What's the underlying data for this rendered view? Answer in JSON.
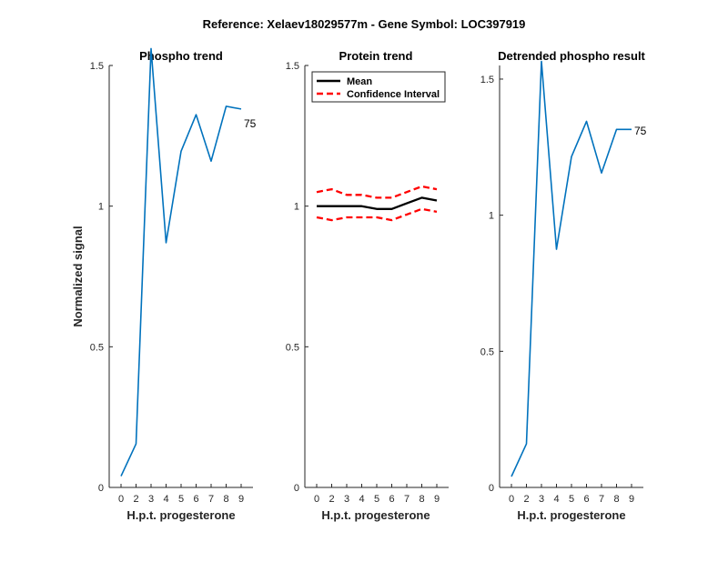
{
  "suptitle": "Reference:  Xelaev18029577m - Gene Symbol:  LOC397919",
  "colors": {
    "series_blue": "#0072BD",
    "mean_black": "#000000",
    "ci_red": "#FF0000",
    "axis": "#262626"
  },
  "chart_data": [
    {
      "id": "phospho",
      "type": "line",
      "title": "Phospho trend",
      "xlabel": "H.p.t. progesterone",
      "ylabel": "Normalized signal",
      "x": [
        0,
        2,
        3,
        4,
        5,
        6,
        7,
        8,
        9
      ],
      "xticks": [
        "0",
        "2",
        "3",
        "4",
        "5",
        "6",
        "7",
        "8",
        "9"
      ],
      "ylim": [
        0,
        1.5
      ],
      "yticks": [
        0,
        0.5,
        1,
        1.5
      ],
      "ytick_labels": [
        "0",
        "0.5",
        "1",
        "1.5"
      ],
      "series": [
        {
          "values": [
            0.04,
            0.155,
            1.56,
            0.87,
            1.195,
            1.325,
            1.16,
            1.355,
            1.345
          ]
        }
      ],
      "end_label": "75"
    },
    {
      "id": "protein",
      "type": "line",
      "title": "Protein trend",
      "xlabel": "H.p.t. progesterone",
      "ylabel": "",
      "x": [
        0,
        2,
        3,
        4,
        5,
        6,
        7,
        8,
        9
      ],
      "xticks": [
        "0",
        "2",
        "3",
        "4",
        "5",
        "6",
        "7",
        "8",
        "9"
      ],
      "ylim": [
        0,
        1.5
      ],
      "yticks": [
        0,
        0.5,
        1,
        1.5
      ],
      "ytick_labels": [
        "0",
        "0.5",
        "1",
        "1.5"
      ],
      "legend": {
        "placement": "top-left",
        "entries": [
          "Mean",
          "Confidence Interval"
        ]
      },
      "series": [
        {
          "name": "Mean",
          "values": [
            1.0,
            1.0,
            1.0,
            1.0,
            0.99,
            0.99,
            1.01,
            1.03,
            1.02
          ]
        },
        {
          "name": "Confidence Interval",
          "values": [
            1.05,
            1.06,
            1.04,
            1.04,
            1.03,
            1.03,
            1.05,
            1.07,
            1.06
          ]
        },
        {
          "name": "Confidence Interval",
          "values": [
            0.96,
            0.95,
            0.96,
            0.96,
            0.96,
            0.95,
            0.97,
            0.99,
            0.98
          ]
        }
      ]
    },
    {
      "id": "detrended",
      "type": "line",
      "title": "Detrended phospho result",
      "xlabel": "H.p.t. progesterone",
      "ylabel": "",
      "x": [
        0,
        2,
        3,
        4,
        5,
        6,
        7,
        8,
        9
      ],
      "xticks": [
        "0",
        "2",
        "3",
        "4",
        "5",
        "6",
        "7",
        "8",
        "9"
      ],
      "ylim": [
        0,
        1.55
      ],
      "yticks": [
        0,
        0.5,
        1,
        1.5
      ],
      "ytick_labels": [
        "0",
        "0.5",
        "1",
        "1.5"
      ],
      "series": [
        {
          "values": [
            0.04,
            0.16,
            1.565,
            0.875,
            1.215,
            1.345,
            1.155,
            1.315,
            1.315
          ]
        }
      ],
      "end_label": "75"
    }
  ]
}
